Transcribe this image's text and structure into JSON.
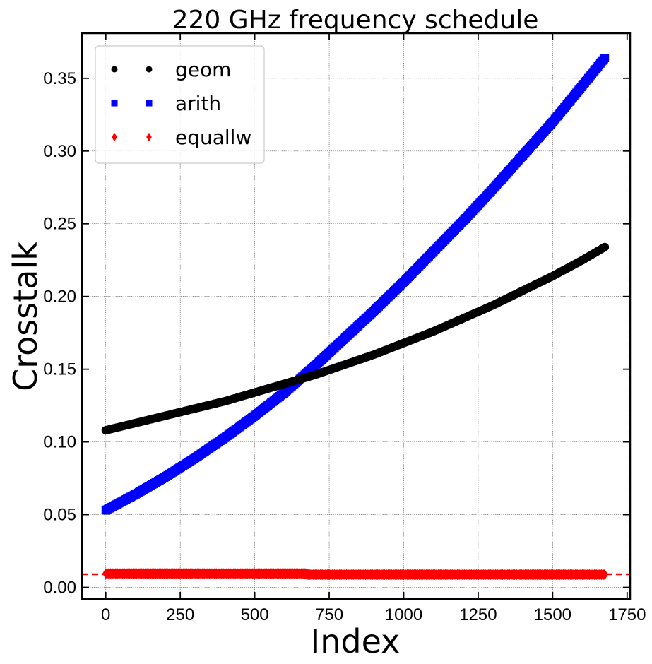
{
  "chart_data": {
    "type": "scatter",
    "title": "220 GHz frequency schedule",
    "xlabel": "Index",
    "ylabel": "Crosstalk",
    "xlim": [
      -80,
      1760
    ],
    "ylim": [
      -0.008,
      0.381
    ],
    "xticks": [
      0,
      250,
      500,
      750,
      1000,
      1250,
      1500,
      1750
    ],
    "xtick_labels": [
      "0",
      "250",
      "500",
      "750",
      "1000",
      "1250",
      "1500",
      "1750"
    ],
    "yticks": [
      0.0,
      0.05,
      0.1,
      0.15,
      0.2,
      0.25,
      0.3,
      0.35
    ],
    "ytick_labels": [
      "0.00",
      "0.05",
      "0.10",
      "0.15",
      "0.20",
      "0.25",
      "0.30",
      "0.35"
    ],
    "grid": true,
    "legend_position": "top-left",
    "reference_line": {
      "y": 0.009,
      "color": "#ff0000",
      "style": "dashed"
    },
    "series": [
      {
        "name": "geom",
        "marker": "circle",
        "color": "#000000",
        "x": [
          0,
          100,
          200,
          300,
          400,
          500,
          600,
          700,
          800,
          900,
          1000,
          1100,
          1200,
          1300,
          1400,
          1500,
          1600,
          1675
        ],
        "y": [
          0.108,
          0.113,
          0.118,
          0.123,
          0.128,
          0.134,
          0.14,
          0.146,
          0.153,
          0.16,
          0.168,
          0.176,
          0.185,
          0.194,
          0.204,
          0.214,
          0.225,
          0.234
        ]
      },
      {
        "name": "arith",
        "marker": "square",
        "color": "#0000ff",
        "x": [
          0,
          100,
          200,
          300,
          400,
          500,
          600,
          700,
          800,
          900,
          1000,
          1100,
          1200,
          1300,
          1400,
          1500,
          1600,
          1675
        ],
        "y": [
          0.053,
          0.064,
          0.076,
          0.089,
          0.103,
          0.118,
          0.134,
          0.152,
          0.171,
          0.19,
          0.21,
          0.231,
          0.252,
          0.274,
          0.297,
          0.32,
          0.345,
          0.364
        ]
      },
      {
        "name": "equallw",
        "marker": "diamond",
        "color": "#ff0000",
        "x": [
          0,
          100,
          200,
          300,
          400,
          500,
          600,
          670,
          680,
          800,
          900,
          1000,
          1100,
          1200,
          1300,
          1400,
          1500,
          1600,
          1675
        ],
        "y": [
          0.0095,
          0.0095,
          0.0095,
          0.0095,
          0.0095,
          0.0095,
          0.0095,
          0.0095,
          0.0088,
          0.0088,
          0.0088,
          0.0088,
          0.0088,
          0.0088,
          0.0088,
          0.0088,
          0.0088,
          0.0088,
          0.0088
        ]
      }
    ]
  }
}
